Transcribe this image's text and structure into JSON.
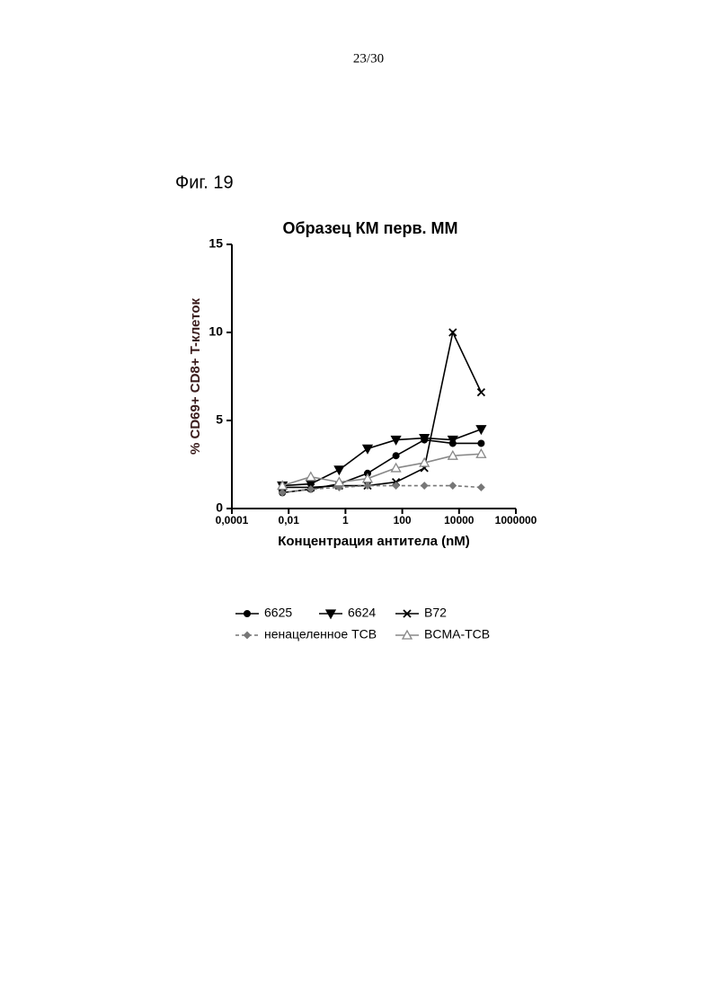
{
  "page_number": "23/30",
  "figure_label": "Фиг. 19",
  "chart_data": {
    "type": "line",
    "title": "Образец КМ перв. ММ",
    "x_label": "Концентрация антитела (nM)",
    "y_label": "% CD69+ CD8+ T-клеток",
    "xlog": true,
    "x": [
      0.006,
      0.06,
      0.6,
      6,
      60,
      600,
      6000,
      60000
    ],
    "xlim": [
      0.0001,
      1000000
    ],
    "xticks": [
      {
        "value": 0.0001,
        "label": "0,0001"
      },
      {
        "value": 0.01,
        "label": "0,01"
      },
      1,
      100,
      10000,
      1000000
    ],
    "ylim": [
      0,
      15
    ],
    "yticks": [
      0,
      5,
      10,
      15
    ],
    "series": [
      {
        "name": "6625",
        "color": "#000000",
        "marker": "circle",
        "dashed": false,
        "values": [
          0.9,
          1.1,
          1.4,
          2.0,
          3.0,
          3.9,
          3.7,
          3.7
        ]
      },
      {
        "name": "6624",
        "color": "#000000",
        "marker": "triangle-down",
        "dashed": false,
        "values": [
          1.3,
          1.4,
          2.2,
          3.4,
          3.9,
          4.0,
          3.9,
          4.5
        ]
      },
      {
        "name": "B72",
        "color": "#000000",
        "marker": "cross",
        "dashed": false,
        "values": [
          1.2,
          1.2,
          1.3,
          1.3,
          1.5,
          2.3,
          10.0,
          6.6
        ]
      },
      {
        "name": "ненацеленное TCB",
        "color": "#777777",
        "marker": "diamond",
        "dashed": true,
        "values": [
          0.9,
          1.1,
          1.2,
          1.3,
          1.3,
          1.3,
          1.3,
          1.2
        ]
      },
      {
        "name": "BCMA-TCB",
        "color": "#888888",
        "marker": "triangle-up",
        "dashed": false,
        "values": [
          1.3,
          1.8,
          1.5,
          1.7,
          2.3,
          2.6,
          3.0,
          3.1
        ]
      }
    ]
  }
}
